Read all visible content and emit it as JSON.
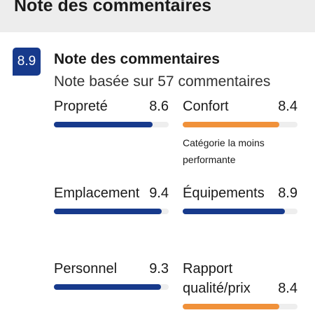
{
  "header": {
    "title": "Note des commentaires"
  },
  "summary": {
    "score": 8.9,
    "title": "Note des commentaires",
    "subtitle": "Note basée sur 57 commentaires"
  },
  "xlim": [
    0,
    10
  ],
  "categories": [
    {
      "name": "Propreté",
      "score": 8.6,
      "color": "#173a8c"
    },
    {
      "name": "Confort",
      "score": 8.4,
      "color": "#f0913a",
      "note": "Catégorie la moins performante"
    },
    {
      "name": "Emplacement",
      "score": 9.4,
      "color": "#173a8c"
    },
    {
      "name": "Équipements",
      "score": 8.9,
      "color": "#173a8c"
    },
    {
      "name": "Personnel",
      "score": 9.3,
      "color": "#173a8c"
    },
    {
      "name": "Rapport qualité/prix",
      "score": 8.4,
      "color": "#f0913a"
    }
  ]
}
